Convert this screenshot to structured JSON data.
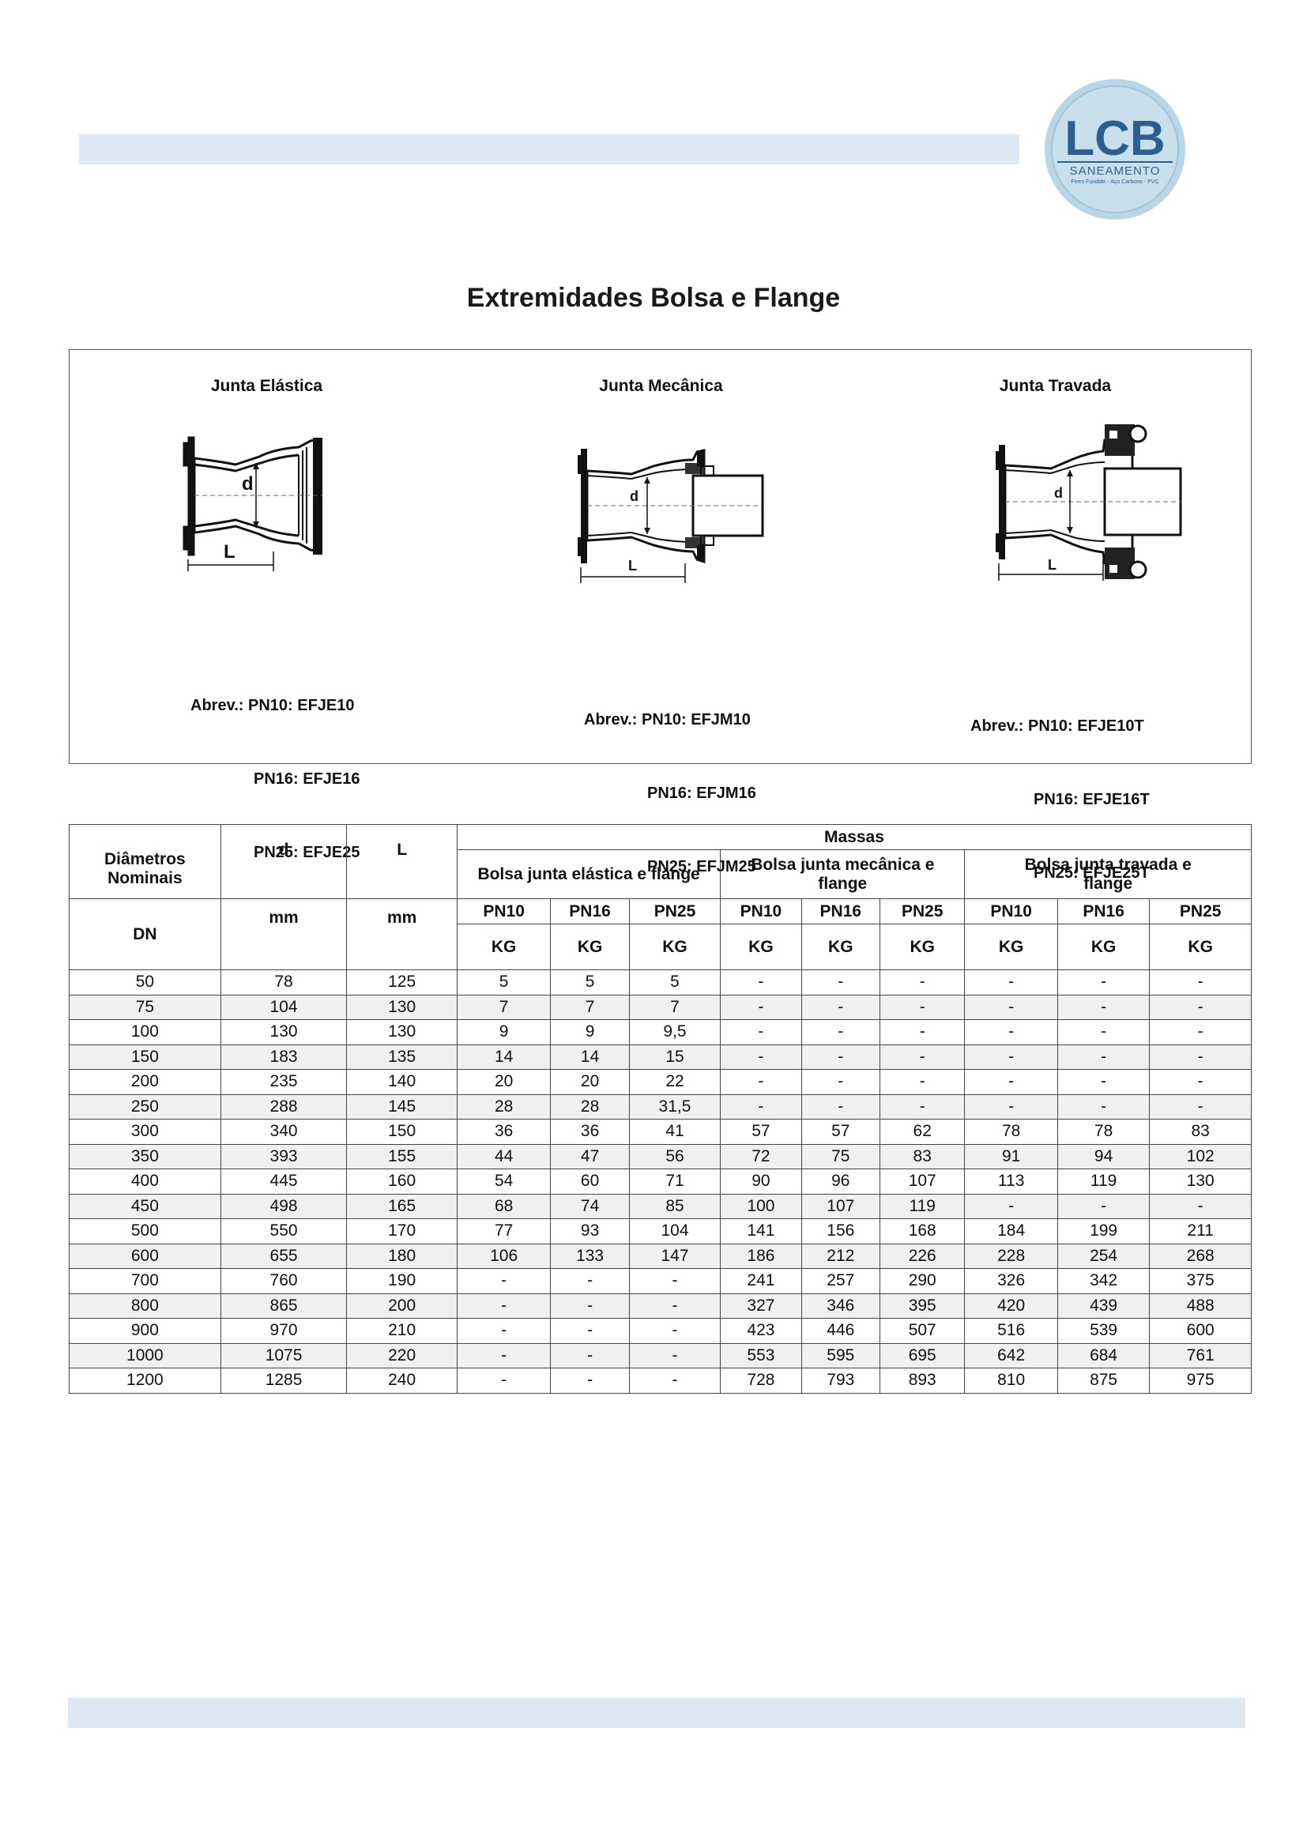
{
  "logo": {
    "initials": "LCB",
    "line1": "SANEAMENTO",
    "line2": "Ferro Fundido - Aço Carbono - PVC"
  },
  "title": "Extremidades Bolsa e Flange",
  "panels": [
    {
      "title": "Junta Elástica",
      "abbr": [
        "Abrev.: PN10: EFJE10",
        "PN16: EFJE16",
        "PN25: EFJE25"
      ],
      "d": "d",
      "L": "L"
    },
    {
      "title": "Junta Mecânica",
      "abbr": [
        "Abrev.: PN10: EFJM10",
        "PN16: EFJM16",
        "PN25: EFJM25"
      ],
      "d": "d",
      "L": "L"
    },
    {
      "title": "Junta Travada",
      "abbr": [
        "Abrev.: PN10: EFJE10T",
        "PN16: EFJE16T",
        "PN25: EFJE25T"
      ],
      "d": "d",
      "L": "L"
    }
  ],
  "table": {
    "h_dn": [
      "Diâmetros",
      "Nominais",
      "DN"
    ],
    "h_d": "d",
    "h_L": "L",
    "h_mm": "mm",
    "h_massas": "Massas",
    "groups": [
      "Bolsa junta elástica e flange",
      "Bolsa junta mecânica e flange",
      "Bolsa junta travada e flange"
    ],
    "pn": [
      "PN10",
      "PN16",
      "PN25"
    ],
    "unit": "KG",
    "rows": [
      [
        "50",
        "78",
        "125",
        "5",
        "5",
        "5",
        "-",
        "-",
        "-",
        "-",
        "-",
        "-"
      ],
      [
        "75",
        "104",
        "130",
        "7",
        "7",
        "7",
        "-",
        "-",
        "-",
        "-",
        "-",
        "-"
      ],
      [
        "100",
        "130",
        "130",
        "9",
        "9",
        "9,5",
        "-",
        "-",
        "-",
        "-",
        "-",
        "-"
      ],
      [
        "150",
        "183",
        "135",
        "14",
        "14",
        "15",
        "-",
        "-",
        "-",
        "-",
        "-",
        "-"
      ],
      [
        "200",
        "235",
        "140",
        "20",
        "20",
        "22",
        "-",
        "-",
        "-",
        "-",
        "-",
        "-"
      ],
      [
        "250",
        "288",
        "145",
        "28",
        "28",
        "31,5",
        "-",
        "-",
        "-",
        "-",
        "-",
        "-"
      ],
      [
        "300",
        "340",
        "150",
        "36",
        "36",
        "41",
        "57",
        "57",
        "62",
        "78",
        "78",
        "83"
      ],
      [
        "350",
        "393",
        "155",
        "44",
        "47",
        "56",
        "72",
        "75",
        "83",
        "91",
        "94",
        "102"
      ],
      [
        "400",
        "445",
        "160",
        "54",
        "60",
        "71",
        "90",
        "96",
        "107",
        "113",
        "119",
        "130"
      ],
      [
        "450",
        "498",
        "165",
        "68",
        "74",
        "85",
        "100",
        "107",
        "119",
        "-",
        "-",
        "-"
      ],
      [
        "500",
        "550",
        "170",
        "77",
        "93",
        "104",
        "141",
        "156",
        "168",
        "184",
        "199",
        "211"
      ],
      [
        "600",
        "655",
        "180",
        "106",
        "133",
        "147",
        "186",
        "212",
        "226",
        "228",
        "254",
        "268"
      ],
      [
        "700",
        "760",
        "190",
        "-",
        "-",
        "-",
        "241",
        "257",
        "290",
        "326",
        "342",
        "375"
      ],
      [
        "800",
        "865",
        "200",
        "-",
        "-",
        "-",
        "327",
        "346",
        "395",
        "420",
        "439",
        "488"
      ],
      [
        "900",
        "970",
        "210",
        "-",
        "-",
        "-",
        "423",
        "446",
        "507",
        "516",
        "539",
        "600"
      ],
      [
        "1000",
        "1075",
        "220",
        "-",
        "-",
        "-",
        "553",
        "595",
        "695",
        "642",
        "684",
        "761"
      ],
      [
        "1200",
        "1285",
        "240",
        "-",
        "-",
        "-",
        "728",
        "793",
        "893",
        "810",
        "875",
        "975"
      ]
    ]
  }
}
